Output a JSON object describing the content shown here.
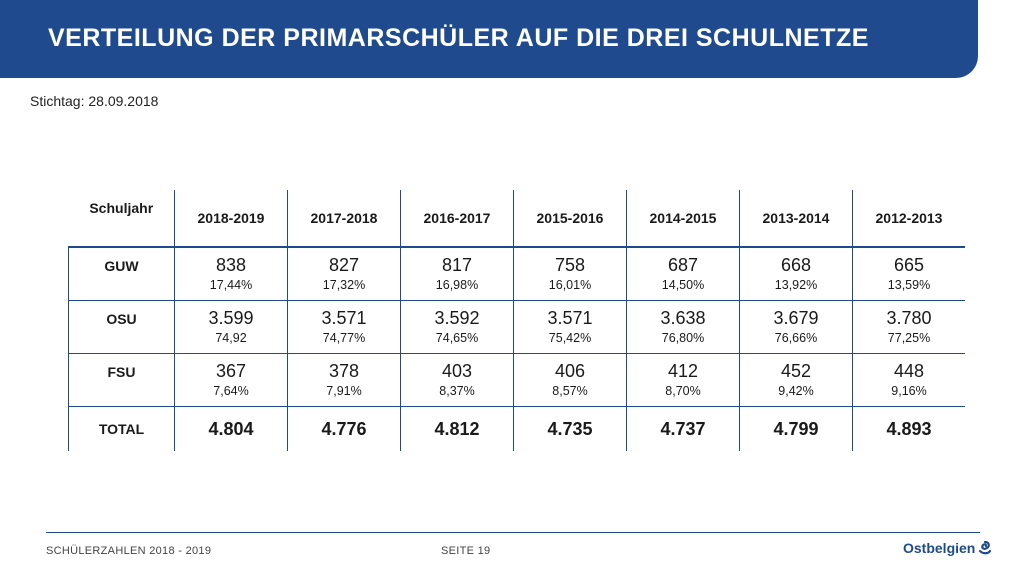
{
  "header": {
    "title": "VERTEILUNG DER PRIMARSCHÜLER AUF DIE DREI SCHULNETZE"
  },
  "subtitle": "Stichtag: 28.09.2018",
  "table": {
    "corner_label": "Schuljahr",
    "years": [
      "2018-2019",
      "2017-2018",
      "2016-2017",
      "2015-2016",
      "2014-2015",
      "2013-2014",
      "2012-2013"
    ],
    "rows": [
      {
        "label": "GUW",
        "values": [
          "838",
          "827",
          "817",
          "758",
          "687",
          "668",
          "665"
        ],
        "percents": [
          "17,44%",
          "17,32%",
          "16,98%",
          "16,01%",
          "14,50%",
          "13,92%",
          "13,59%"
        ]
      },
      {
        "label": "OSU",
        "values": [
          "3.599",
          "3.571",
          "3.592",
          "3.571",
          "3.638",
          "3.679",
          "3.780"
        ],
        "percents": [
          "74,92",
          "74,77%",
          "74,65%",
          "75,42%",
          "76,80%",
          "76,66%",
          "77,25%"
        ]
      },
      {
        "label": "FSU",
        "values": [
          "367",
          "378",
          "403",
          "406",
          "412",
          "452",
          "448"
        ],
        "percents": [
          "7,64%",
          "7,91%",
          "8,37%",
          "8,57%",
          "8,70%",
          "9,42%",
          "9,16%"
        ]
      }
    ],
    "total": {
      "label": "TOTAL",
      "values": [
        "4.804",
        "4.776",
        "4.812",
        "4.735",
        "4.737",
        "4.799",
        "4.893"
      ]
    }
  },
  "footer": {
    "left": "SCHÜLERZAHLEN 2018 - 2019",
    "page": "SEITE 19",
    "logo": "Ostbelgien"
  },
  "colors": {
    "accent": "#1f4b8e"
  }
}
